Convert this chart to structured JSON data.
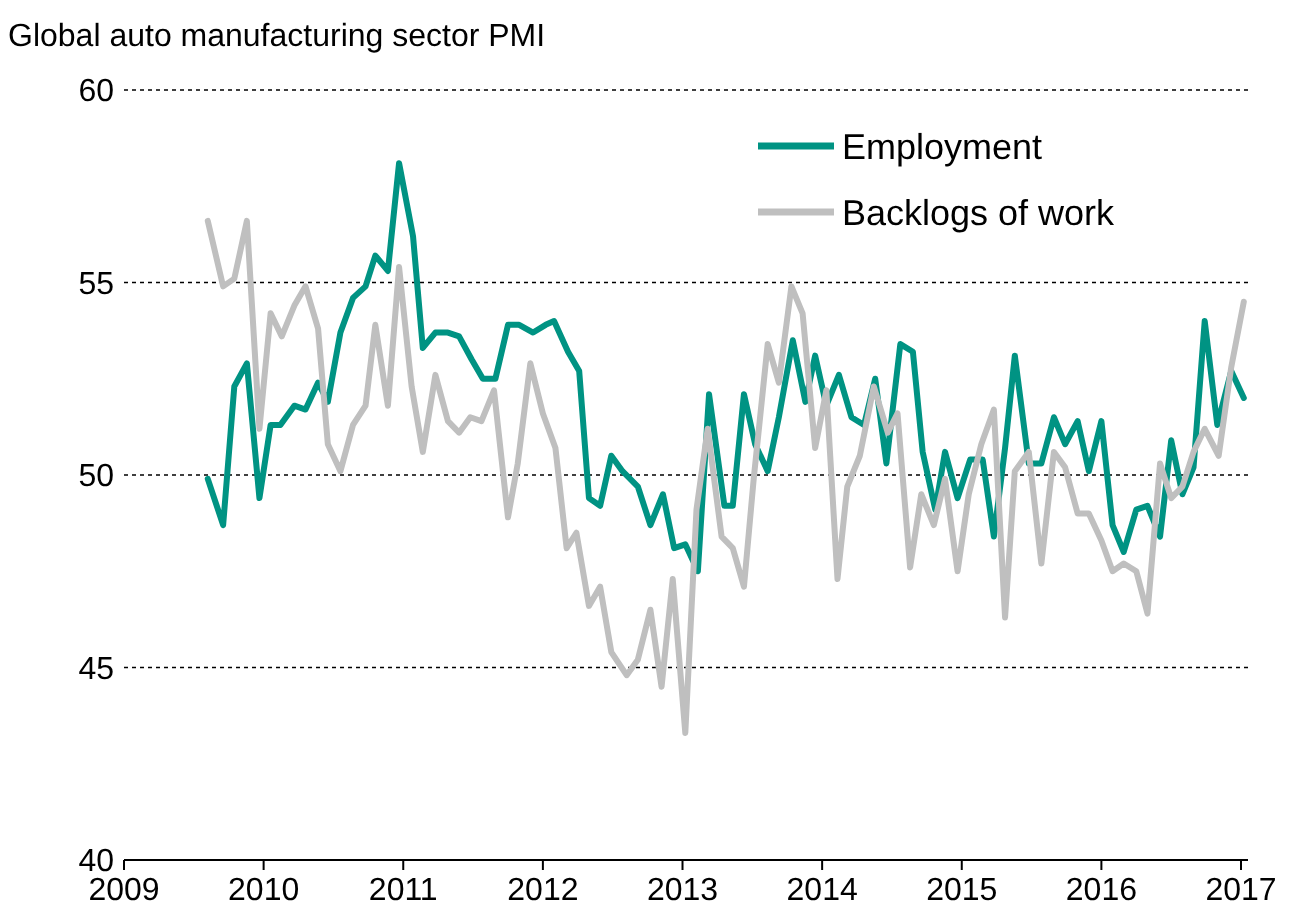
{
  "chart_data": {
    "type": "line",
    "title": "Global auto manufacturing sector PMI",
    "xlim": [
      2009,
      2017.05
    ],
    "xticks": [
      2009,
      2010,
      2011,
      2012,
      2013,
      2014,
      2015,
      2016,
      2017
    ],
    "ylim": [
      40,
      60
    ],
    "yticks": [
      40,
      45,
      50,
      55,
      60
    ],
    "grid": "y",
    "legend": "top right",
    "marker": "none",
    "line_style": "solid",
    "series": [
      {
        "name": "Employment",
        "color": "#009383",
        "x": [
          2009.6,
          2009.71,
          2009.79,
          2009.88,
          2009.97,
          2010.05,
          2010.12,
          2010.22,
          2010.3,
          2010.39,
          2010.46,
          2010.55,
          2010.64,
          2010.73,
          2010.8,
          2010.89,
          2010.97,
          2011.07,
          2011.14,
          2011.23,
          2011.32,
          2011.4,
          2011.49,
          2011.57,
          2011.66,
          2011.75,
          2011.83,
          2011.93,
          2012.02,
          2012.08,
          2012.18,
          2012.26,
          2012.33,
          2012.41,
          2012.49,
          2012.57,
          2012.68,
          2012.77,
          2012.86,
          2012.94,
          2013.02,
          2013.11,
          2013.19,
          2013.3,
          2013.36,
          2013.44,
          2013.52,
          2013.61,
          2013.69,
          2013.79,
          2013.88,
          2013.95,
          2014.03,
          2014.12,
          2014.21,
          2014.3,
          2014.38,
          2014.46,
          2014.56,
          2014.65,
          2014.72,
          2014.81,
          2014.88,
          2014.97,
          2015.06,
          2015.15,
          2015.23,
          2015.31,
          2015.38,
          2015.48,
          2015.57,
          2015.66,
          2015.74,
          2015.83,
          2015.91,
          2016,
          2016.08,
          2016.16,
          2016.25,
          2016.33,
          2016.42,
          2016.5,
          2016.58,
          2016.66,
          2016.74,
          2016.83,
          2016.93,
          2017.02
        ],
        "values": [
          49.9,
          48.7,
          52.3,
          52.9,
          49.4,
          51.3,
          51.3,
          51.8,
          51.7,
          52.4,
          51.9,
          53.7,
          54.6,
          54.9,
          55.7,
          55.3,
          58.1,
          56.2,
          53.3,
          53.7,
          53.7,
          53.6,
          53,
          52.5,
          52.5,
          53.9,
          53.9,
          53.7,
          53.9,
          54,
          53.2,
          52.7,
          49.4,
          49.2,
          50.5,
          50.1,
          49.7,
          48.7,
          49.5,
          48.1,
          48.2,
          47.5,
          52.1,
          49.2,
          49.2,
          52.1,
          50.8,
          50.1,
          51.5,
          53.5,
          51.9,
          53.1,
          51.8,
          52.6,
          51.5,
          51.3,
          52.5,
          50.3,
          53.4,
          53.2,
          50.6,
          49.1,
          50.6,
          49.4,
          50.4,
          50.4,
          48.4,
          50.7,
          53.1,
          50.3,
          50.3,
          51.5,
          50.8,
          51.4,
          50.1,
          51.4,
          48.7,
          48,
          49.1,
          49.2,
          48.4,
          50.9,
          49.5,
          50.2,
          54,
          51.3,
          52.7,
          52
        ]
      },
      {
        "name": "Backlogs of work",
        "color": "#bfbfbf",
        "x": [
          2009.6,
          2009.71,
          2009.79,
          2009.88,
          2009.97,
          2010.05,
          2010.13,
          2010.22,
          2010.3,
          2010.39,
          2010.46,
          2010.55,
          2010.64,
          2010.73,
          2010.8,
          2010.89,
          2010.97,
          2011.06,
          2011.14,
          2011.23,
          2011.32,
          2011.4,
          2011.48,
          2011.56,
          2011.65,
          2011.75,
          2011.82,
          2011.91,
          2012,
          2012.09,
          2012.17,
          2012.24,
          2012.33,
          2012.41,
          2012.49,
          2012.6,
          2012.68,
          2012.77,
          2012.85,
          2012.93,
          2013.02,
          2013.1,
          2013.18,
          2013.28,
          2013.36,
          2013.44,
          2013.51,
          2013.61,
          2013.69,
          2013.78,
          2013.86,
          2013.95,
          2014.03,
          2014.11,
          2014.18,
          2014.27,
          2014.37,
          2014.47,
          2014.54,
          2014.63,
          2014.71,
          2014.8,
          2014.88,
          2014.97,
          2015.05,
          2015.14,
          2015.23,
          2015.31,
          2015.38,
          2015.48,
          2015.57,
          2015.66,
          2015.74,
          2015.83,
          2015.91,
          2016,
          2016.08,
          2016.16,
          2016.25,
          2016.33,
          2016.42,
          2016.5,
          2016.58,
          2016.66,
          2016.74,
          2016.84,
          2016.93,
          2017.02
        ],
        "values": [
          56.6,
          54.9,
          55.1,
          56.6,
          51.2,
          54.2,
          53.6,
          54.4,
          54.9,
          53.8,
          50.8,
          50.1,
          51.3,
          51.8,
          53.9,
          51.8,
          55.4,
          52.3,
          50.6,
          52.6,
          51.4,
          51.1,
          51.5,
          51.4,
          52.2,
          48.9,
          50.3,
          52.9,
          51.6,
          50.7,
          48.1,
          48.5,
          46.6,
          47.1,
          45.4,
          44.8,
          45.2,
          46.5,
          44.5,
          47.3,
          43.3,
          49.1,
          51.2,
          48.4,
          48.1,
          47.1,
          49.9,
          53.4,
          52.4,
          54.9,
          54.2,
          50.7,
          52.2,
          47.3,
          49.7,
          50.5,
          52.3,
          51.1,
          51.6,
          47.6,
          49.5,
          48.7,
          49.9,
          47.5,
          49.5,
          50.8,
          51.7,
          46.3,
          50.1,
          50.6,
          47.7,
          50.6,
          50.2,
          49,
          49,
          48.3,
          47.5,
          47.7,
          47.5,
          46.4,
          50.3,
          49.4,
          49.7,
          50.6,
          51.2,
          50.5,
          52.8,
          54.5
        ]
      }
    ]
  }
}
